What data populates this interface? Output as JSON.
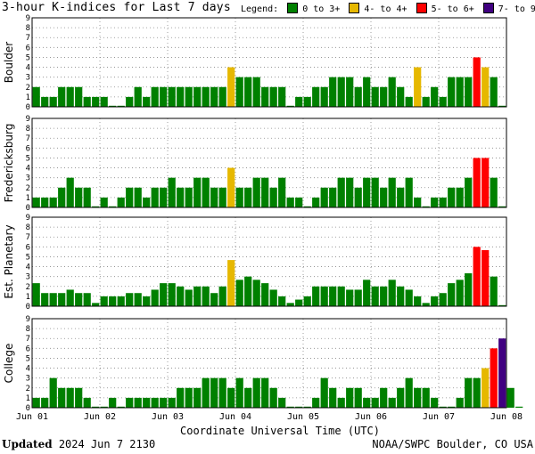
{
  "header": {
    "title": "3-hour K-indices for Last 7 days",
    "legend_label": "Legend:",
    "legend": [
      {
        "label": "0 to 3+",
        "color": "#008000"
      },
      {
        "label": "4- to 4+",
        "color": "#e6b800"
      },
      {
        "label": "5- to 6+",
        "color": "#ff0000"
      },
      {
        "label": "7- to 9",
        "color": "#400080"
      }
    ]
  },
  "footer": {
    "updated_label": "Updated",
    "updated_value": "2024 Jun  7 2130",
    "source": "NOAA/SWPC Boulder, CO USA"
  },
  "chart_data": {
    "type": "bar",
    "xlabel": "Coordinate Universal Time (UTC)",
    "x_tick_labels": [
      "Jun 01",
      "Jun 02",
      "Jun 03",
      "Jun 04",
      "Jun 05",
      "Jun 06",
      "Jun 07",
      "Jun 08"
    ],
    "ylim": [
      0,
      9
    ],
    "y_ticks": [
      0,
      1,
      2,
      3,
      4,
      5,
      6,
      7,
      8,
      9
    ],
    "grid": true,
    "panels": [
      {
        "name": "Boulder",
        "values": [
          2,
          1,
          1,
          2,
          2,
          2,
          1,
          1,
          1,
          0,
          0,
          1,
          2,
          1,
          2,
          2,
          2,
          2,
          2,
          2,
          2,
          2,
          2,
          4,
          3,
          3,
          3,
          2,
          2,
          2,
          0,
          1,
          1,
          2,
          2,
          3,
          3,
          3,
          2,
          3,
          2,
          2,
          3,
          2,
          1,
          4,
          1,
          2,
          1,
          3,
          3,
          3,
          5,
          4,
          3,
          0
        ]
      },
      {
        "name": "Fredericksburg",
        "values": [
          1,
          1,
          1,
          2,
          3,
          2,
          2,
          0,
          1,
          0,
          1,
          2,
          2,
          1,
          2,
          2,
          3,
          2,
          2,
          3,
          3,
          2,
          2,
          4,
          2,
          2,
          3,
          3,
          2,
          3,
          1,
          1,
          0,
          1,
          2,
          2,
          3,
          3,
          2,
          3,
          3,
          2,
          3,
          2,
          3,
          1,
          0,
          1,
          1,
          2,
          2,
          3,
          5,
          5,
          3,
          0
        ]
      },
      {
        "name": "Est. Planetary",
        "values": [
          2.33,
          1.33,
          1.33,
          1.33,
          1.67,
          1.33,
          1.33,
          0.33,
          1,
          1,
          1,
          1.33,
          1.33,
          1,
          1.67,
          2.33,
          2.33,
          2,
          1.67,
          2,
          2,
          1.33,
          2,
          4.67,
          2.67,
          3,
          2.67,
          2.33,
          1.67,
          1,
          0.33,
          0.67,
          1,
          2,
          2,
          2,
          2,
          1.67,
          1.67,
          2.67,
          2,
          2,
          2.67,
          2,
          1.67,
          1,
          0.33,
          1,
          1.33,
          2.33,
          2.67,
          3.33,
          6,
          5.67,
          3,
          0
        ]
      },
      {
        "name": "College",
        "values": [
          1,
          1,
          3,
          2,
          2,
          2,
          1,
          0,
          0,
          1,
          0,
          1,
          1,
          1,
          1,
          1,
          1,
          2,
          2,
          2,
          3,
          3,
          3,
          2,
          3,
          2,
          3,
          3,
          2,
          1,
          0,
          0,
          0,
          1,
          3,
          2,
          1,
          2,
          2,
          1,
          1,
          2,
          1,
          2,
          3,
          2,
          2,
          1,
          0,
          0,
          1,
          3,
          3,
          4,
          6,
          7,
          2,
          0
        ]
      }
    ]
  }
}
